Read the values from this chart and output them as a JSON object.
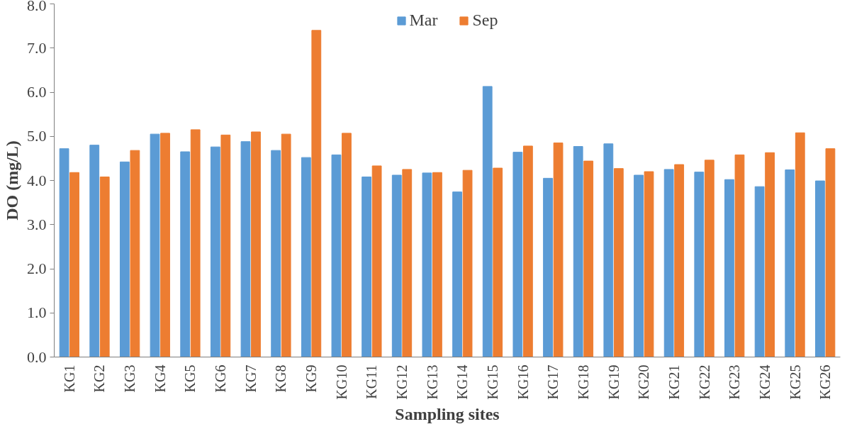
{
  "chart_data": {
    "type": "bar",
    "xlabel": "Sampling sites",
    "ylabel": "DO (mg/L)",
    "categories": [
      "KG1",
      "KG2",
      "KG3",
      "KG4",
      "KG5",
      "KG6",
      "KG7",
      "KG8",
      "KG9",
      "KG10",
      "KG11",
      "KG12",
      "KG13",
      "KG14",
      "KG15",
      "KG16",
      "KG17",
      "KG18",
      "KG19",
      "KG20",
      "KG21",
      "KG22",
      "KG23",
      "KG24",
      "KG25",
      "KG26"
    ],
    "series": [
      {
        "name": "Mar",
        "color": "#5b9bd5",
        "values": [
          4.72,
          4.8,
          4.42,
          5.05,
          4.65,
          4.76,
          4.88,
          4.68,
          4.52,
          4.58,
          4.08,
          4.12,
          4.17,
          3.74,
          6.13,
          4.64,
          4.05,
          4.77,
          4.83,
          4.12,
          4.25,
          4.19,
          4.02,
          3.86,
          4.24,
          3.99
        ]
      },
      {
        "name": "Sep",
        "color": "#ed7d31",
        "values": [
          4.18,
          4.08,
          4.68,
          5.07,
          5.15,
          5.03,
          5.1,
          5.05,
          7.4,
          5.07,
          4.33,
          4.25,
          4.18,
          4.23,
          4.28,
          4.78,
          4.85,
          4.44,
          4.27,
          4.2,
          4.36,
          4.46,
          4.58,
          4.63,
          5.08,
          4.72
        ]
      }
    ],
    "ylim": [
      0,
      8
    ],
    "yticks": [
      {
        "value": 0,
        "label": "0.0"
      },
      {
        "value": 1,
        "label": "1.0"
      },
      {
        "value": 2,
        "label": "2.0"
      },
      {
        "value": 3,
        "label": "3.0"
      },
      {
        "value": 4,
        "label": "4.0"
      },
      {
        "value": 5,
        "label": "5.0"
      },
      {
        "value": 6,
        "label": "6.0"
      },
      {
        "value": 7,
        "label": "7.0"
      },
      {
        "value": 8,
        "label": "8.0"
      }
    ],
    "grid": false,
    "legend": "top"
  }
}
